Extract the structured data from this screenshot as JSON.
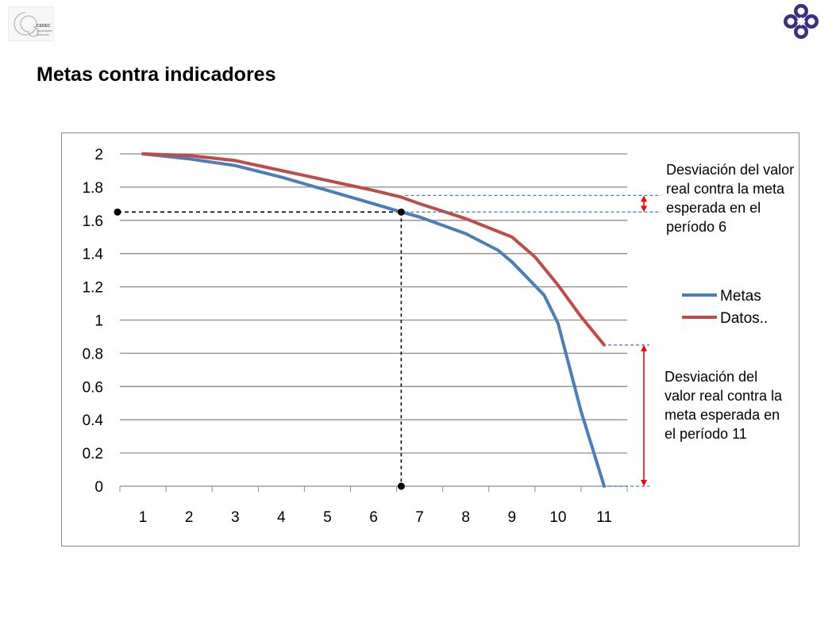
{
  "slide": {
    "title": "Metas contra indicadores",
    "logo_left_text": [
      "CEDEC",
      "Capacitación",
      "Desarrollo"
    ]
  },
  "colors": {
    "metas": "#4a7ebb",
    "datos": "#be4b48",
    "grid": "#8c8c8c",
    "guide_dashed": "#000000",
    "guide_blue_dashed": "#4f81bd",
    "arrow": "#ff0000",
    "logo_right": "#3b2e80"
  },
  "chart_data": {
    "type": "line",
    "x": [
      1,
      2,
      3,
      4,
      5,
      6,
      7,
      8,
      9,
      10,
      11
    ],
    "x_ticks": [
      "1",
      "2",
      "3",
      "4",
      "5",
      "6",
      "7",
      "8",
      "9",
      "10",
      "11"
    ],
    "y_ticks": [
      "2",
      "1.8",
      "1.6",
      "1.4",
      "1.2",
      "1",
      "0.8",
      "0.6",
      "0.4",
      "0.2",
      "0"
    ],
    "ylim": [
      0,
      2
    ],
    "grid": true,
    "legend_position": "right",
    "series": [
      {
        "name": "Metas",
        "color": "#4a7ebb",
        "points": [
          [
            1,
            2.0
          ],
          [
            2,
            1.97
          ],
          [
            3,
            1.93
          ],
          [
            4,
            1.86
          ],
          [
            5,
            1.78
          ],
          [
            6,
            1.7
          ],
          [
            6.6,
            1.65
          ],
          [
            7,
            1.62
          ],
          [
            8,
            1.52
          ],
          [
            8.7,
            1.42
          ],
          [
            9,
            1.35
          ],
          [
            9.7,
            1.15
          ],
          [
            10,
            0.98
          ],
          [
            10.5,
            0.45
          ],
          [
            11,
            0.0
          ]
        ]
      },
      {
        "name": "Datos..",
        "color": "#be4b48",
        "points": [
          [
            1,
            2.0
          ],
          [
            2,
            1.99
          ],
          [
            3,
            1.96
          ],
          [
            4,
            1.9
          ],
          [
            5,
            1.84
          ],
          [
            6,
            1.78
          ],
          [
            6.6,
            1.74
          ],
          [
            7,
            1.7
          ],
          [
            8,
            1.61
          ],
          [
            9,
            1.5
          ],
          [
            9.5,
            1.38
          ],
          [
            10,
            1.21
          ],
          [
            10.5,
            1.02
          ],
          [
            11,
            0.85
          ]
        ]
      }
    ],
    "annotations": [
      {
        "text": [
          "Desviación del valor",
          "real contra la meta",
          "esperada en el",
          "período 6"
        ],
        "period": 6,
        "from_value": 1.65,
        "to_value": 1.75
      },
      {
        "text": [
          "Desviación del",
          "valor real contra la",
          "meta esperada en",
          "el período 11"
        ],
        "period": 11,
        "from_value": 0.0,
        "to_value": 0.85
      }
    ],
    "guide_point": {
      "x": 6.6,
      "y": 1.65
    }
  }
}
